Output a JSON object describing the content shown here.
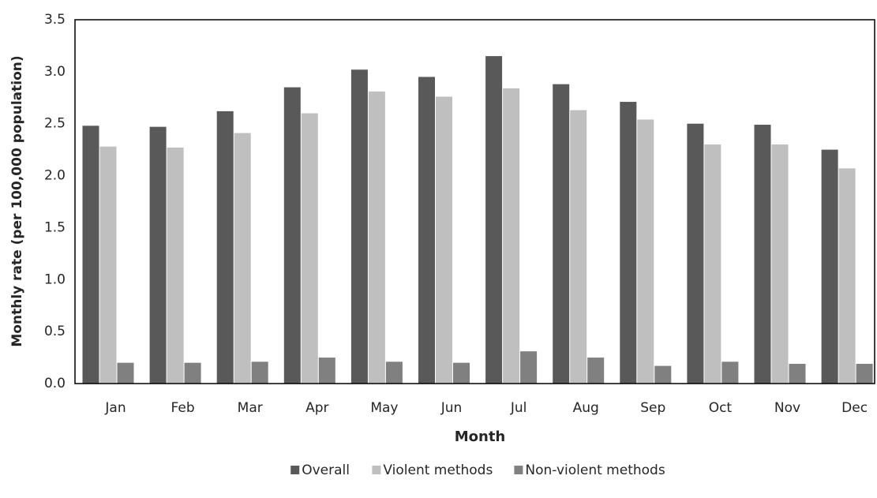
{
  "chart_data": {
    "type": "bar",
    "x_label": "Month",
    "y_label": "Monthly rate (per 100,000 population)",
    "categories": [
      "Jan",
      "Feb",
      "Mar",
      "Apr",
      "May",
      "Jun",
      "Jul",
      "Aug",
      "Sep",
      "Oct",
      "Nov",
      "Dec"
    ],
    "series": [
      {
        "name": "Overall",
        "color": "#595959",
        "values": [
          2.48,
          2.47,
          2.62,
          2.85,
          3.02,
          2.95,
          3.15,
          2.88,
          2.71,
          2.5,
          2.49,
          2.25
        ]
      },
      {
        "name": "Violent methods",
        "color": "#bfbfbf",
        "values": [
          2.28,
          2.27,
          2.41,
          2.6,
          2.81,
          2.76,
          2.84,
          2.63,
          2.54,
          2.3,
          2.3,
          2.07
        ]
      },
      {
        "name": "Non-violent methods",
        "color": "#808080",
        "values": [
          0.2,
          0.2,
          0.21,
          0.25,
          0.21,
          0.2,
          0.31,
          0.25,
          0.17,
          0.21,
          0.19,
          0.19
        ]
      }
    ],
    "ylim": [
      0,
      3.5
    ],
    "yticks": [
      {
        "value": 0,
        "label": "0.0"
      },
      0.5,
      {
        "value": 1,
        "label": "1.0"
      },
      1.5,
      {
        "value": 2,
        "label": "2.0"
      },
      2.5,
      {
        "value": 3,
        "label": "3.0"
      },
      3.5
    ],
    "grid": false,
    "legend_position": "bottom"
  }
}
